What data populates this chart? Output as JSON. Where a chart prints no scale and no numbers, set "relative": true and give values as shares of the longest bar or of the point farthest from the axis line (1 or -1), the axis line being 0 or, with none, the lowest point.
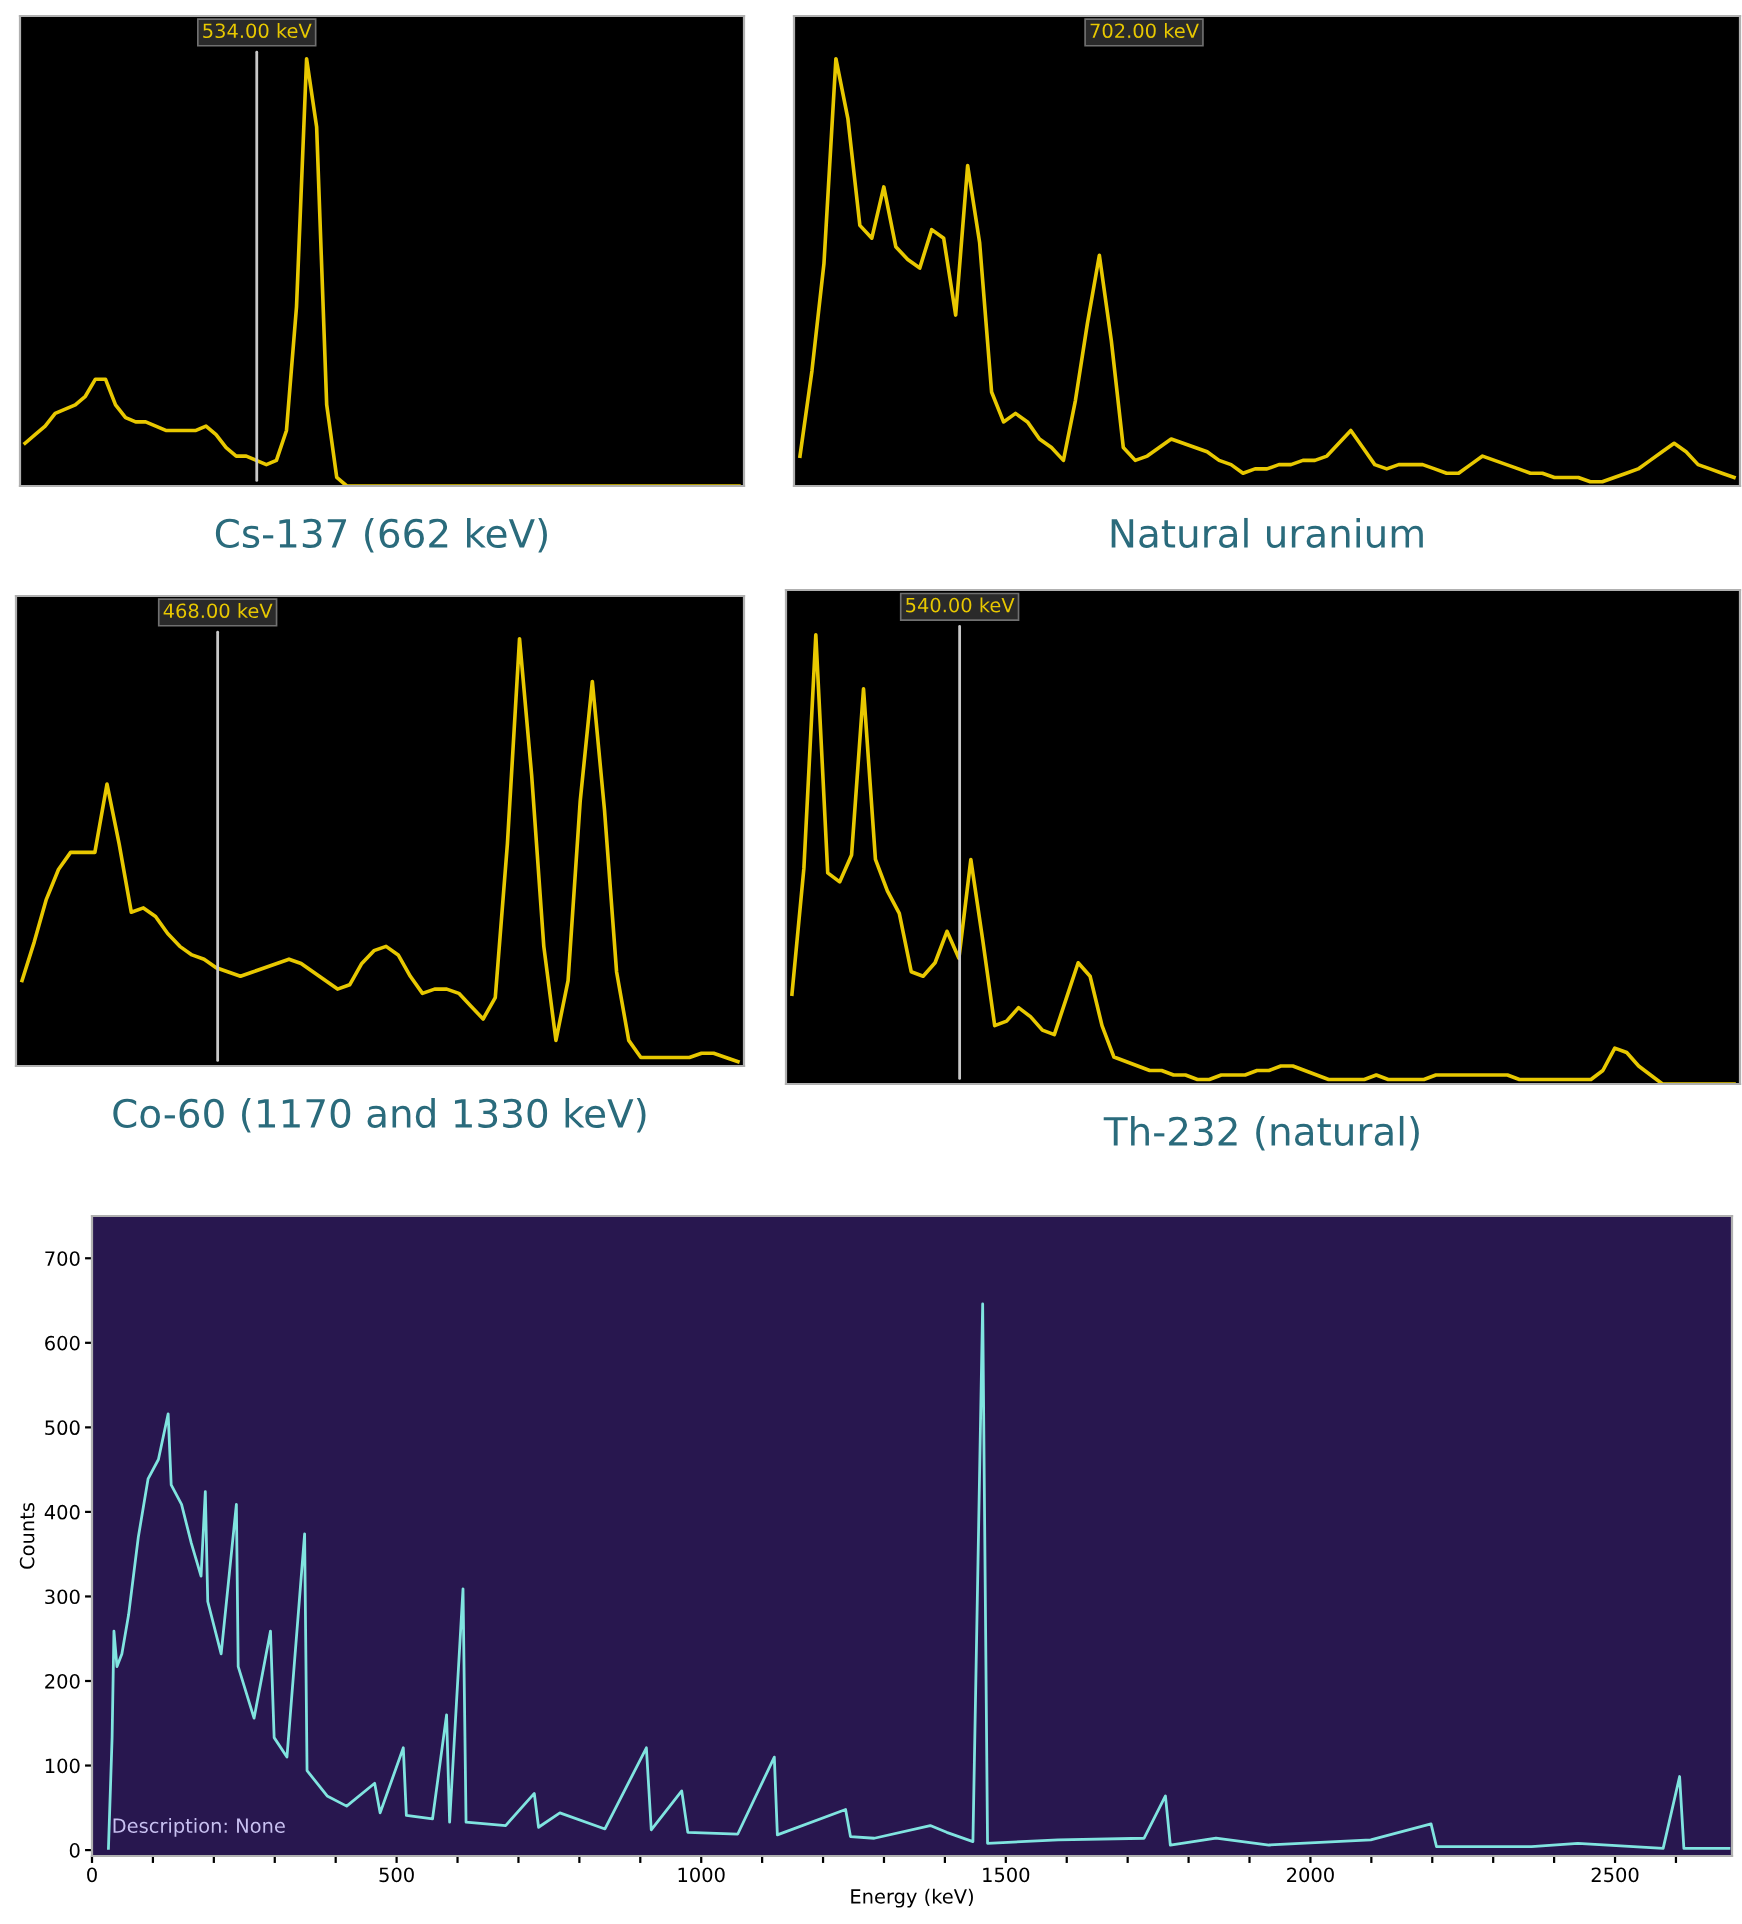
{
  "chart_data": [
    {
      "type": "line",
      "relative": true,
      "xlabel": "Cs-137 (662 keV)",
      "grid": false,
      "legend": false,
      "marker": "none",
      "line_style": "solid",
      "categories": [
        null,
        null,
        null,
        null,
        null,
        null,
        null,
        null,
        null,
        null,
        null,
        null,
        null,
        null,
        null,
        null,
        null,
        null,
        null,
        null,
        null,
        null,
        null,
        null,
        null,
        null,
        null,
        null,
        null,
        null,
        null,
        null,
        null,
        null,
        null,
        null,
        null,
        null,
        null,
        null,
        null,
        null,
        null,
        null,
        null,
        null,
        null,
        null,
        null,
        null,
        null,
        null,
        null,
        null,
        null,
        null,
        null,
        null,
        null,
        null,
        null,
        null,
        null,
        null,
        null,
        null,
        null,
        null,
        null,
        null,
        null,
        null
      ],
      "series": [
        {
          "color": "#e8c800",
          "values": [
            0.1,
            0.12,
            0.14,
            0.17,
            0.18,
            0.19,
            0.21,
            0.25,
            0.25,
            0.19,
            0.16,
            0.15,
            0.15,
            0.14,
            0.13,
            0.13,
            0.13,
            0.13,
            0.14,
            0.12,
            0.09,
            0.07,
            0.07,
            0.06,
            0.05,
            0.06,
            0.13,
            0.42,
            1.0,
            0.84,
            0.19,
            0.02,
            0,
            0,
            0,
            0,
            0,
            0,
            0,
            0,
            0,
            0,
            0,
            0,
            0,
            0,
            0,
            0,
            0,
            0,
            0,
            0,
            0,
            0,
            0,
            0,
            0,
            0,
            0,
            0,
            0,
            0,
            0,
            0,
            0,
            0,
            0,
            0,
            0,
            0,
            0,
            0
          ]
        }
      ],
      "annotations": [
        "534.00 keV"
      ]
    },
    {
      "type": "line",
      "relative": true,
      "xlabel": "Natural uranium",
      "grid": false,
      "legend": false,
      "marker": "none",
      "line_style": "solid",
      "categories": [
        null,
        null,
        null,
        null,
        null,
        null,
        null,
        null,
        null,
        null,
        null,
        null,
        null,
        null,
        null,
        null,
        null,
        null,
        null,
        null,
        null,
        null,
        null,
        null,
        null,
        null,
        null,
        null,
        null,
        null,
        null,
        null,
        null,
        null,
        null,
        null,
        null,
        null,
        null,
        null,
        null,
        null,
        null,
        null,
        null,
        null,
        null,
        null,
        null,
        null,
        null,
        null,
        null,
        null,
        null,
        null,
        null,
        null,
        null,
        null,
        null,
        null,
        null,
        null,
        null,
        null,
        null,
        null,
        null,
        null,
        null,
        null,
        null,
        null,
        null,
        null,
        null,
        null,
        null
      ],
      "series": [
        {
          "color": "#e8c800",
          "values": [
            0.07,
            0.27,
            0.52,
            1.0,
            0.86,
            0.61,
            0.58,
            0.7,
            0.56,
            0.53,
            0.51,
            0.6,
            0.58,
            0.4,
            0.75,
            0.57,
            0.22,
            0.15,
            0.17,
            0.15,
            0.11,
            0.09,
            0.06,
            0.2,
            0.38,
            0.54,
            0.34,
            0.09,
            0.06,
            0.07,
            0.09,
            0.11,
            0.1,
            0.09,
            0.08,
            0.06,
            0.05,
            0.03,
            0.04,
            0.04,
            0.05,
            0.05,
            0.06,
            0.06,
            0.07,
            0.1,
            0.13,
            0.09,
            0.05,
            0.04,
            0.05,
            0.05,
            0.05,
            0.04,
            0.03,
            0.03,
            0.05,
            0.07,
            0.06,
            0.05,
            0.04,
            0.03,
            0.03,
            0.02,
            0.02,
            0.02,
            0.01,
            0.01,
            0.02,
            0.03,
            0.04,
            0.06,
            0.08,
            0.1,
            0.08,
            0.05,
            0.04,
            0.03,
            0.02
          ]
        }
      ],
      "annotations": [
        "702.00 keV"
      ]
    },
    {
      "type": "line",
      "relative": true,
      "xlabel": "Co-60 (1170 and 1330 keV)",
      "grid": false,
      "legend": false,
      "marker": "none",
      "line_style": "solid",
      "categories": [
        null,
        null,
        null,
        null,
        null,
        null,
        null,
        null,
        null,
        null,
        null,
        null,
        null,
        null,
        null,
        null,
        null,
        null,
        null,
        null,
        null,
        null,
        null,
        null,
        null,
        null,
        null,
        null,
        null,
        null,
        null,
        null,
        null,
        null,
        null,
        null,
        null,
        null,
        null,
        null,
        null,
        null,
        null,
        null,
        null,
        null,
        null,
        null,
        null,
        null,
        null,
        null,
        null,
        null,
        null,
        null,
        null,
        null,
        null,
        null
      ],
      "series": [
        {
          "color": "#e8c800",
          "values": [
            0.2,
            0.29,
            0.39,
            0.46,
            0.5,
            0.5,
            0.5,
            0.66,
            0.52,
            0.36,
            0.37,
            0.35,
            0.31,
            0.28,
            0.26,
            0.25,
            0.23,
            0.22,
            0.21,
            0.22,
            0.23,
            0.24,
            0.25,
            0.24,
            0.22,
            0.2,
            0.18,
            0.19,
            0.24,
            0.27,
            0.28,
            0.26,
            0.21,
            0.17,
            0.18,
            0.18,
            0.17,
            0.14,
            0.11,
            0.16,
            0.52,
            1.0,
            0.68,
            0.28,
            0.06,
            0.2,
            0.62,
            0.9,
            0.6,
            0.22,
            0.06,
            0.02,
            0.02,
            0.02,
            0.02,
            0.02,
            0.03,
            0.03,
            0.02,
            0.01
          ]
        }
      ],
      "annotations": [
        "468.00 keV"
      ]
    },
    {
      "type": "line",
      "relative": true,
      "xlabel": "Th-232 (natural)",
      "grid": false,
      "legend": false,
      "marker": "none",
      "line_style": "solid",
      "categories": [
        null,
        null,
        null,
        null,
        null,
        null,
        null,
        null,
        null,
        null,
        null,
        null,
        null,
        null,
        null,
        null,
        null,
        null,
        null,
        null,
        null,
        null,
        null,
        null,
        null,
        null,
        null,
        null,
        null,
        null,
        null,
        null,
        null,
        null,
        null,
        null,
        null,
        null,
        null,
        null,
        null,
        null,
        null,
        null,
        null,
        null,
        null,
        null,
        null,
        null,
        null,
        null,
        null,
        null,
        null,
        null,
        null,
        null,
        null,
        null,
        null,
        null,
        null,
        null,
        null,
        null,
        null,
        null,
        null,
        null,
        null,
        null,
        null,
        null,
        null,
        null,
        null,
        null,
        null,
        null
      ],
      "series": [
        {
          "color": "#e8c800",
          "values": [
            0.2,
            0.48,
            1.0,
            0.47,
            0.45,
            0.51,
            0.88,
            0.5,
            0.43,
            0.38,
            0.25,
            0.24,
            0.27,
            0.34,
            0.28,
            0.5,
            0.32,
            0.13,
            0.14,
            0.17,
            0.15,
            0.12,
            0.11,
            0.19,
            0.27,
            0.24,
            0.13,
            0.06,
            0.05,
            0.04,
            0.03,
            0.03,
            0.02,
            0.02,
            0.01,
            0.01,
            0.02,
            0.02,
            0.02,
            0.03,
            0.03,
            0.04,
            0.04,
            0.03,
            0.02,
            0.01,
            0.01,
            0.01,
            0.01,
            0.02,
            0.01,
            0.01,
            0.01,
            0.01,
            0.02,
            0.02,
            0.02,
            0.02,
            0.02,
            0.02,
            0.02,
            0.01,
            0.01,
            0.01,
            0.01,
            0.01,
            0.01,
            0.01,
            0.03,
            0.08,
            0.07,
            0.04,
            0.02,
            0,
            0,
            0,
            0,
            0,
            0,
            0
          ]
        }
      ],
      "annotations": [
        "540.00 keV"
      ]
    },
    {
      "type": "line",
      "xlabel": "Energy (keV)",
      "ylabel": "Counts",
      "grid": false,
      "legend": false,
      "marker": "none",
      "line_style": "solid",
      "xlim": [
        0,
        2692
      ],
      "ylim": [
        -7,
        750
      ],
      "xticks": [
        0,
        {
          "value": 100,
          "label": null
        },
        {
          "value": 200,
          "label": null
        },
        {
          "value": 300,
          "label": null
        },
        {
          "value": 400,
          "label": null
        },
        500,
        {
          "value": 600,
          "label": null
        },
        {
          "value": 700,
          "label": null
        },
        {
          "value": 800,
          "label": null
        },
        {
          "value": 900,
          "label": null
        },
        1000,
        {
          "value": 1100,
          "label": null
        },
        {
          "value": 1200,
          "label": null
        },
        {
          "value": 1300,
          "label": null
        },
        {
          "value": 1400,
          "label": null
        },
        1500,
        {
          "value": 1600,
          "label": null
        },
        {
          "value": 1700,
          "label": null
        },
        {
          "value": 1800,
          "label": null
        },
        {
          "value": 1900,
          "label": null
        },
        2000,
        {
          "value": 2100,
          "label": null
        },
        {
          "value": 2200,
          "label": null
        },
        {
          "value": 2300,
          "label": null
        },
        {
          "value": 2400,
          "label": null
        },
        2500,
        {
          "value": 2600,
          "label": null
        }
      ],
      "yticks": [
        0,
        100,
        200,
        300,
        400,
        500,
        600,
        700
      ],
      "x": [
        27,
        33,
        36,
        41,
        49,
        60,
        76,
        92,
        109,
        125,
        130,
        147,
        163,
        179,
        186,
        190,
        212,
        237,
        240,
        266,
        293,
        299,
        320,
        349,
        353,
        386,
        418,
        464,
        473,
        511,
        516,
        559,
        582,
        587,
        609,
        614,
        679,
        726,
        733,
        768,
        842,
        910,
        918,
        968,
        978,
        1060,
        1120,
        1125,
        1237,
        1245,
        1284,
        1376,
        1403,
        1446,
        1462,
        1470,
        1586,
        1727,
        1762,
        1770,
        1845,
        1932,
        2099,
        2198,
        2207,
        2363,
        2439,
        2579,
        2606,
        2613,
        2687
      ],
      "series": [
        {
          "color": "#80e4e0",
          "values": [
            2,
            133,
            259,
            217,
            232,
            278,
            370,
            439,
            462,
            516,
            432,
            409,
            363,
            324,
            424,
            294,
            232,
            409,
            217,
            156,
            259,
            133,
            110,
            374,
            94,
            64,
            52,
            79,
            44,
            121,
            41,
            37,
            160,
            33,
            309,
            33,
            29,
            67,
            27,
            44,
            25,
            121,
            24,
            70,
            21,
            19,
            110,
            18,
            48,
            16,
            14,
            29,
            21,
            10,
            646,
            8,
            12,
            14,
            64,
            6,
            14,
            6,
            12,
            31,
            4,
            4,
            8,
            2,
            87,
            2,
            2
          ]
        }
      ],
      "annotations": [
        "Description: None"
      ]
    }
  ]
}
